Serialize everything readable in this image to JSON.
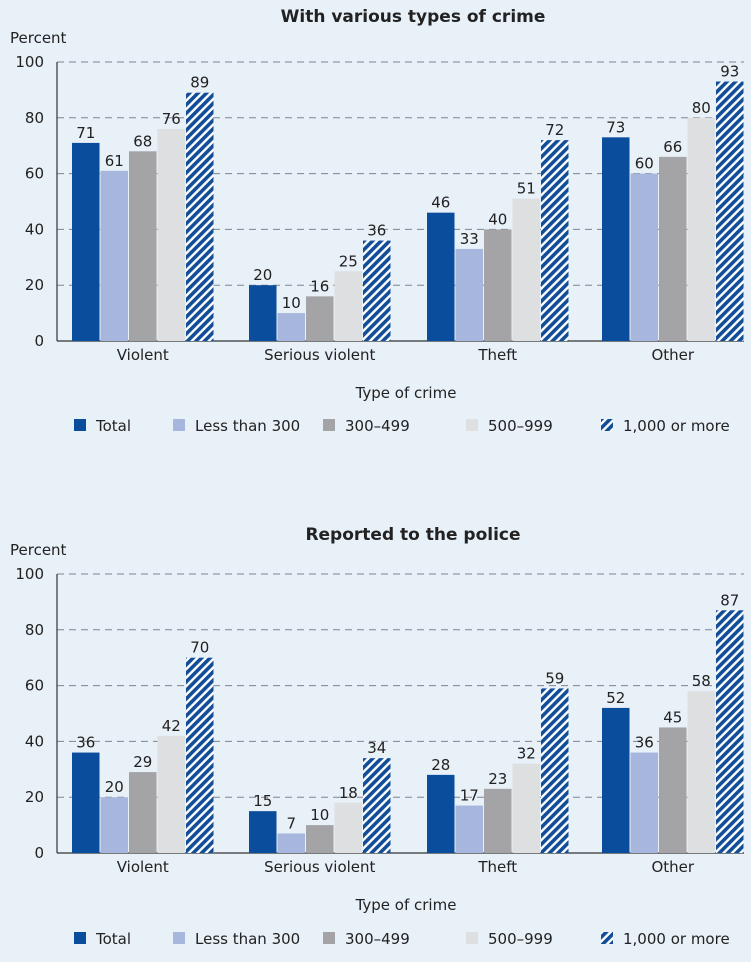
{
  "colors": {
    "Total": "#0a4d9c",
    "Less than 300": "#a7b6dd",
    "300–499": "#a4a4a7",
    "500–999": "#dedfe1",
    "1,000 or more": "#124e97"
  },
  "chart_data": [
    {
      "type": "bar",
      "title": "With various types of crime",
      "ylabel": "Percent",
      "xlabel": "Type of crime",
      "ylim": [
        0,
        100
      ],
      "yticks": [
        0,
        20,
        40,
        60,
        80,
        100
      ],
      "grid": true,
      "legend_position": "bottom",
      "categories": [
        "Violent",
        "Serious violent",
        "Theft",
        "Other"
      ],
      "series": [
        {
          "name": "Total",
          "values": [
            71,
            20,
            46,
            73
          ]
        },
        {
          "name": "Less than 300",
          "values": [
            61,
            10,
            33,
            60
          ]
        },
        {
          "name": "300–499",
          "values": [
            68,
            16,
            40,
            66
          ]
        },
        {
          "name": "500–999",
          "values": [
            76,
            25,
            51,
            80
          ]
        },
        {
          "name": "1,000 or more",
          "values": [
            89,
            36,
            72,
            93
          ]
        }
      ]
    },
    {
      "type": "bar",
      "title": "Reported to the police",
      "ylabel": "Percent",
      "xlabel": "Type of crime",
      "ylim": [
        0,
        100
      ],
      "yticks": [
        0,
        20,
        40,
        60,
        80,
        100
      ],
      "grid": true,
      "legend_position": "bottom",
      "categories": [
        "Violent",
        "Serious violent",
        "Theft",
        "Other"
      ],
      "series": [
        {
          "name": "Total",
          "values": [
            36,
            15,
            28,
            52
          ]
        },
        {
          "name": "Less than 300",
          "values": [
            20,
            7,
            17,
            36
          ]
        },
        {
          "name": "300–499",
          "values": [
            29,
            10,
            23,
            45
          ]
        },
        {
          "name": "500–999",
          "values": [
            42,
            18,
            32,
            58
          ]
        },
        {
          "name": "1,000 or more",
          "values": [
            70,
            34,
            59,
            87
          ]
        }
      ]
    }
  ]
}
